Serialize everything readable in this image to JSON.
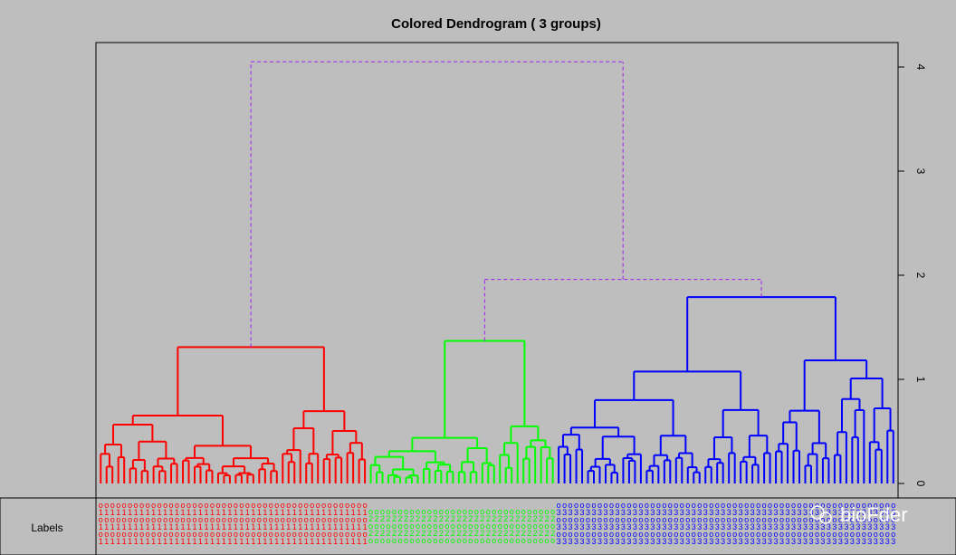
{
  "chart_data": {
    "type": "dendrogram",
    "title": "Colored Dendrogram ( 3  groups)",
    "ylim": [
      0,
      4.4
    ],
    "yticks": [
      "0",
      "1",
      "2",
      "3",
      "4"
    ],
    "root_height": 4.05,
    "upper_merge_height": 1.96,
    "groups": [
      {
        "name": "group-1",
        "color": "#ff0000",
        "leaves": 46,
        "height": 1.31,
        "label_glyph": "1"
      },
      {
        "name": "group-2",
        "color": "#00ff00",
        "leaves": 32,
        "height": 1.37,
        "label_glyph": "2"
      },
      {
        "name": "group-3",
        "color": "#0000ff",
        "leaves": 58,
        "height": 1.79,
        "label_glyph": "3"
      }
    ],
    "link_color": "#a020f0",
    "label_row_title": "Labels"
  },
  "watermark": "bioFder"
}
